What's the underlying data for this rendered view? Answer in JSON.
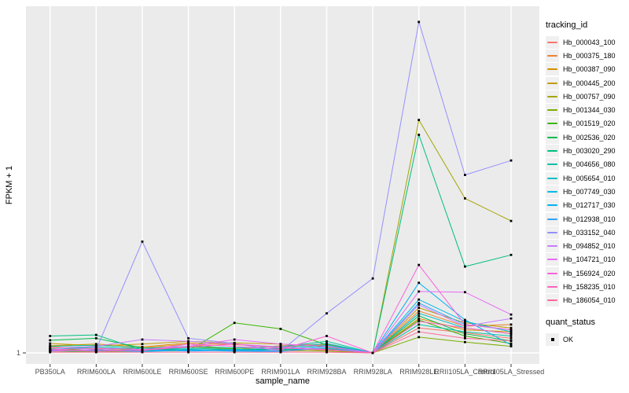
{
  "figure": {
    "bg": "#FFFFFF",
    "panel_bg": "#EBEBEB",
    "grid_color": "#FFFFFF",
    "tick_color": "#333333",
    "axis_text_color": "#4D4D4D",
    "axis_title_color": "#000000",
    "legend_key_bg": "#F0F0F0",
    "point_color": "#000000"
  },
  "chart_data": {
    "type": "line",
    "title": "",
    "xlabel": "sample_name",
    "ylabel": "FPKM + 1",
    "y_scale": "log10",
    "ylim": [
      1,
      10000
    ],
    "grid": "vertical-category-lines-plus-y1",
    "legend_position": "right",
    "legend_color_title": "tracking_id",
    "legend_shape_title": "quant_status",
    "quant_status_items": [
      {
        "label": "OK"
      }
    ],
    "y_ticks": [
      {
        "label": "1",
        "value": 1
      }
    ],
    "x_categories": [
      "PB350LA",
      "RRIM600LA",
      "RRIM600LE",
      "RRIM600SE",
      "RRIM600PE",
      "RRIM901LA",
      "RRIM928BA",
      "RRIM928LA",
      "RRIM928LE",
      "RRII105LA_Control",
      "RRII105LA_Stressed"
    ],
    "series": [
      {
        "name": "Hb_000043_100",
        "color": "#F8766D",
        "values": [
          1.05,
          1.08,
          1.04,
          1.1,
          1.06,
          1.05,
          1.08,
          1.0,
          2.0,
          1.75,
          1.5
        ]
      },
      {
        "name": "Hb_000375_180",
        "color": "#EA8331",
        "values": [
          1.18,
          1.12,
          1.15,
          1.28,
          1.1,
          1.22,
          1.28,
          1.0,
          3.2,
          2.1,
          2.2
        ]
      },
      {
        "name": "Hb_000387_090",
        "color": "#D89000",
        "values": [
          1.22,
          1.28,
          1.18,
          1.32,
          1.26,
          1.18,
          1.25,
          1.0,
          2.6,
          1.9,
          1.8
        ]
      },
      {
        "name": "Hb_000445_200",
        "color": "#C09B00",
        "values": [
          1.3,
          1.22,
          1.28,
          1.38,
          1.32,
          1.28,
          1.18,
          1.0,
          3.5,
          2.3,
          2.0
        ]
      },
      {
        "name": "Hb_000757_090",
        "color": "#A3A500",
        "values": [
          1.1,
          1.14,
          1.08,
          1.1,
          1.05,
          1.1,
          1.12,
          1.0,
          645,
          73,
          39
        ]
      },
      {
        "name": "Hb_001344_030",
        "color": "#7CAE00",
        "values": [
          1.12,
          1.08,
          1.05,
          1.18,
          1.12,
          1.08,
          1.05,
          1.0,
          1.55,
          1.35,
          1.2
        ]
      },
      {
        "name": "Hb_001519_020",
        "color": "#39B600",
        "values": [
          1.05,
          1.04,
          1.05,
          1.06,
          2.3,
          1.95,
          1.25,
          1.0,
          2.5,
          1.6,
          1.3
        ]
      },
      {
        "name": "Hb_002536_020",
        "color": "#00BB4E",
        "values": [
          1.42,
          1.5,
          1.15,
          1.08,
          1.1,
          1.12,
          1.1,
          1.0,
          2.8,
          1.7,
          1.4
        ]
      },
      {
        "name": "Hb_003020_290",
        "color": "#00BF7D",
        "values": [
          1.6,
          1.65,
          1.08,
          1.1,
          1.08,
          1.1,
          1.12,
          1.0,
          427,
          11,
          15.2
        ]
      },
      {
        "name": "Hb_004656_080",
        "color": "#00C1A3",
        "values": [
          1.2,
          1.24,
          1.14,
          1.2,
          1.15,
          1.18,
          1.38,
          1.0,
          2.2,
          1.8,
          1.6
        ]
      },
      {
        "name": "Hb_005654_010",
        "color": "#00BFC4",
        "values": [
          1.1,
          1.18,
          1.1,
          1.14,
          1.1,
          1.14,
          1.3,
          1.0,
          3.0,
          2.0,
          1.7
        ]
      },
      {
        "name": "Hb_007749_030",
        "color": "#00BAE0",
        "values": [
          1.06,
          1.1,
          1.05,
          1.1,
          1.06,
          1.1,
          1.24,
          1.0,
          4.4,
          2.4,
          1.8
        ]
      },
      {
        "name": "Hb_012717_030",
        "color": "#00B0F6",
        "values": [
          1.05,
          1.08,
          1.04,
          1.08,
          1.05,
          1.04,
          1.2,
          1.0,
          7.0,
          2.5,
          1.25
        ]
      },
      {
        "name": "Hb_012938_010",
        "color": "#35A2FF",
        "values": [
          1.08,
          1.05,
          1.1,
          1.05,
          1.08,
          1.05,
          1.15,
          1.0,
          4.0,
          2.2,
          1.9
        ]
      },
      {
        "name": "Hb_033152_040",
        "color": "#9590FF",
        "values": [
          1.05,
          1.1,
          22,
          1.5,
          1.3,
          1.05,
          3.0,
          7.9,
          9800,
          140,
          209
        ]
      },
      {
        "name": "Hb_094852_010",
        "color": "#C77CFF",
        "values": [
          1.14,
          1.2,
          1.45,
          1.38,
          1.28,
          1.18,
          1.1,
          1.0,
          3.8,
          2.1,
          2.6
        ]
      },
      {
        "name": "Hb_104721_010",
        "color": "#E76BF3",
        "values": [
          1.1,
          1.14,
          1.1,
          1.2,
          1.45,
          1.28,
          1.2,
          1.0,
          5.5,
          5.4,
          2.9
        ]
      },
      {
        "name": "Hb_156924_020",
        "color": "#FA62DB",
        "values": [
          1.05,
          1.1,
          1.06,
          1.28,
          1.2,
          1.1,
          1.6,
          1.0,
          11.5,
          2.2,
          1.9
        ]
      },
      {
        "name": "Hb_158235_010",
        "color": "#FF62BC",
        "values": [
          1.1,
          1.05,
          1.08,
          1.18,
          1.28,
          1.14,
          1.1,
          1.0,
          2.4,
          2.0,
          1.7
        ]
      },
      {
        "name": "Hb_186054_010",
        "color": "#FF6A98",
        "values": [
          1.02,
          1.02,
          1.02,
          1.02,
          1.02,
          1.02,
          1.02,
          1.0,
          1.8,
          1.5,
          1.4
        ]
      }
    ]
  }
}
